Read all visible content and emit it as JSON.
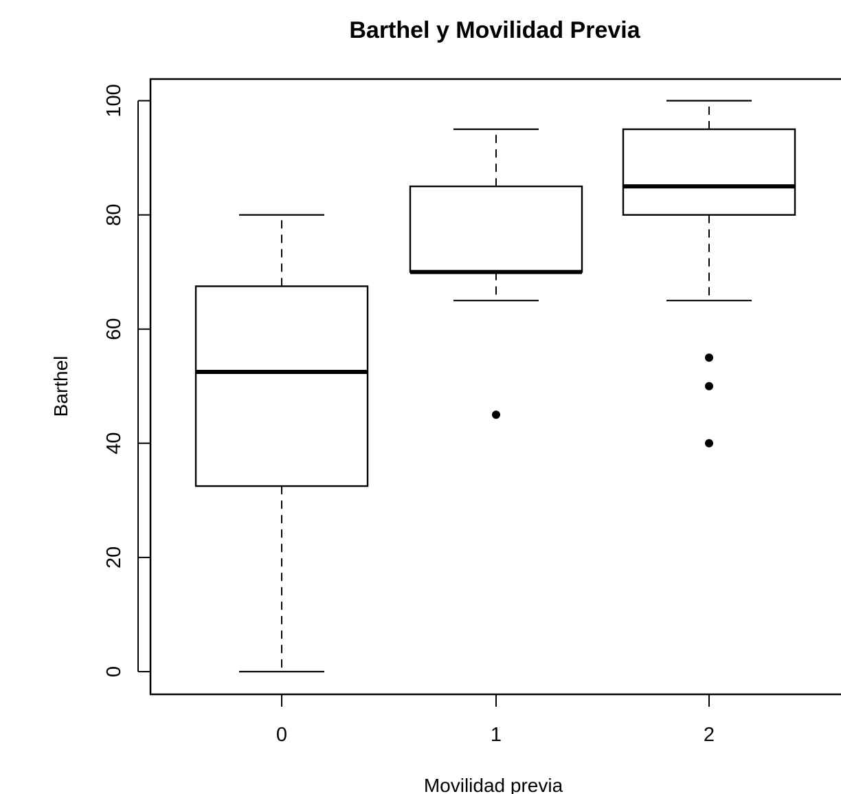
{
  "chart_data": {
    "type": "box",
    "title": "Barthel y Movilidad Previa",
    "xlabel": "Movilidad previa",
    "ylabel": "Barthel",
    "ylim": [
      -4,
      104
    ],
    "y_ticks": [
      0,
      20,
      40,
      60,
      80,
      100
    ],
    "categories": [
      "0",
      "1",
      "2"
    ],
    "boxes": [
      {
        "category": "0",
        "whisker_low": 0,
        "q1": 32.5,
        "median": 52.5,
        "q3": 67.5,
        "whisker_high": 80,
        "outliers": []
      },
      {
        "category": "1",
        "whisker_low": 65,
        "q1": 70,
        "median": 70,
        "q3": 85,
        "whisker_high": 95,
        "outliers": [
          45
        ]
      },
      {
        "category": "2",
        "whisker_low": 65,
        "q1": 80,
        "median": 85,
        "q3": 95,
        "whisker_high": 100,
        "outliers": [
          55,
          50,
          40
        ]
      }
    ],
    "grid": false,
    "legend": "none"
  }
}
